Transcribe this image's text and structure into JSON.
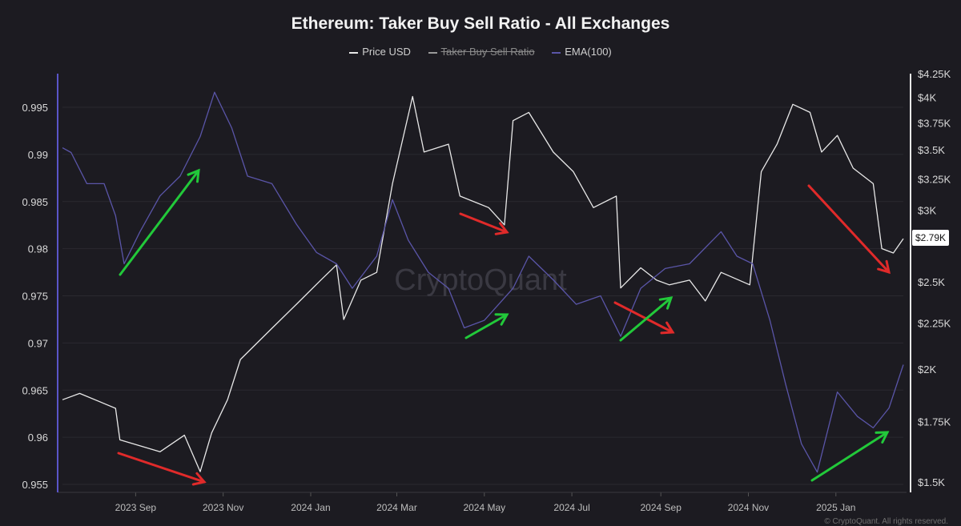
{
  "chart_data": {
    "type": "line",
    "title": "Ethereum: Taker Buy Sell Ratio - All Exchanges",
    "legend": [
      {
        "label": "Price USD",
        "color": "#e8e8e8",
        "hidden": false
      },
      {
        "label": "Taker Buy Sell Ratio",
        "color": "#9a9a9a",
        "hidden": true
      },
      {
        "label": "EMA(100)",
        "color": "#5a55a8",
        "hidden": false
      }
    ],
    "legend_placement": "top-center",
    "x_ticks": [
      {
        "date": "2023-09-01",
        "label": "2023 Sep"
      },
      {
        "date": "2023-11-01",
        "label": "2023 Nov"
      },
      {
        "date": "2024-01-01",
        "label": "2024 Jan"
      },
      {
        "date": "2024-03-01",
        "label": "2024 Mar"
      },
      {
        "date": "2024-05-01",
        "label": "2024 May"
      },
      {
        "date": "2024-07-01",
        "label": "2024 Jul"
      },
      {
        "date": "2024-09-01",
        "label": "2024 Sep"
      },
      {
        "date": "2024-11-01",
        "label": "2024 Nov"
      },
      {
        "date": "2025-01-01",
        "label": "2025 Jan"
      }
    ],
    "x_range": [
      "2023-07-12",
      "2025-02-17"
    ],
    "y_left": {
      "range": [
        0.9535,
        0.9985
      ],
      "ticks": [
        0.955,
        0.96,
        0.965,
        0.97,
        0.975,
        0.98,
        0.985,
        0.99,
        0.995
      ],
      "tick_labels": [
        "0.955",
        "0.96",
        "0.965",
        "0.97",
        "0.975",
        "0.98",
        "0.985",
        "0.99",
        "0.995"
      ]
    },
    "y_right": {
      "scale": "log",
      "range": [
        1.5,
        4.25
      ],
      "unit": "USD thousands",
      "ticks": [
        1.5,
        1.75,
        2,
        2.25,
        2.5,
        3,
        3.25,
        3.5,
        3.75,
        4,
        4.25
      ],
      "tick_labels": [
        "$1.5K",
        "$1.75K",
        "$2K",
        "$2.25K",
        "$2.5K",
        "$3K",
        "$3.25K",
        "$3.5K",
        "$3.75K",
        "$4K",
        "$4.25K"
      ]
    },
    "current_price_label": "$2.79K",
    "grid": true,
    "series": [
      {
        "name": "Price USD",
        "axis": "right",
        "color": "#e8e8e8",
        "x": [
          "2023-07-12",
          "2023-07-24",
          "2023-08-18",
          "2023-08-21",
          "2023-09-18",
          "2023-10-05",
          "2023-10-16",
          "2023-10-24",
          "2023-11-04",
          "2023-11-13",
          "2023-12-05",
          "2023-12-22",
          "2024-01-08",
          "2024-01-19",
          "2024-01-24",
          "2024-02-05",
          "2024-02-16",
          "2024-02-27",
          "2024-03-12",
          "2024-03-20",
          "2024-04-06",
          "2024-04-14",
          "2024-05-04",
          "2024-05-15",
          "2024-05-21",
          "2024-06-01",
          "2024-06-18",
          "2024-07-02",
          "2024-07-16",
          "2024-08-01",
          "2024-08-04",
          "2024-08-18",
          "2024-08-29",
          "2024-09-07",
          "2024-09-21",
          "2024-10-02",
          "2024-10-13",
          "2024-11-02",
          "2024-11-10",
          "2024-11-21",
          "2024-12-02",
          "2024-12-14",
          "2024-12-22",
          "2025-01-02",
          "2025-01-13",
          "2025-01-27",
          "2025-02-02",
          "2025-02-10",
          "2025-02-17"
        ],
        "y": [
          1.85,
          1.88,
          1.81,
          1.67,
          1.62,
          1.69,
          1.54,
          1.7,
          1.85,
          2.05,
          2.22,
          2.36,
          2.51,
          2.61,
          2.27,
          2.51,
          2.56,
          3.21,
          4.01,
          3.48,
          3.55,
          3.11,
          3.02,
          2.89,
          3.77,
          3.85,
          3.48,
          3.31,
          3.02,
          3.11,
          2.46,
          2.59,
          2.51,
          2.48,
          2.51,
          2.38,
          2.56,
          2.48,
          3.31,
          3.55,
          3.93,
          3.85,
          3.48,
          3.63,
          3.34,
          3.21,
          2.72,
          2.69,
          2.79
        ]
      },
      {
        "name": "EMA(100)",
        "axis": "left",
        "color": "#5a55a8",
        "x": [
          "2023-07-12",
          "2023-07-18",
          "2023-07-29",
          "2023-08-10",
          "2023-08-18",
          "2023-08-24",
          "2023-09-04",
          "2023-09-18",
          "2023-10-02",
          "2023-10-16",
          "2023-10-26",
          "2023-11-07",
          "2023-11-18",
          "2023-12-05",
          "2023-12-22",
          "2024-01-05",
          "2024-01-19",
          "2024-01-30",
          "2024-02-16",
          "2024-02-27",
          "2024-03-09",
          "2024-03-23",
          "2024-04-06",
          "2024-04-17",
          "2024-05-01",
          "2024-05-21",
          "2024-06-01",
          "2024-06-18",
          "2024-07-04",
          "2024-07-21",
          "2024-08-04",
          "2024-08-18",
          "2024-09-04",
          "2024-09-21",
          "2024-10-13",
          "2024-10-24",
          "2024-11-04",
          "2024-11-16",
          "2024-11-27",
          "2024-12-08",
          "2024-12-19",
          "2025-01-02",
          "2025-01-16",
          "2025-01-27",
          "2025-02-07",
          "2025-02-17"
        ],
        "y": [
          0.9907,
          0.9902,
          0.9869,
          0.9869,
          0.9835,
          0.9784,
          0.9818,
          0.9856,
          0.9877,
          0.9919,
          0.9966,
          0.9928,
          0.9877,
          0.9869,
          0.9826,
          0.9796,
          0.9784,
          0.9758,
          0.9792,
          0.9852,
          0.9809,
          0.9775,
          0.9758,
          0.9716,
          0.9724,
          0.9758,
          0.9792,
          0.9767,
          0.9741,
          0.975,
          0.9707,
          0.9758,
          0.9779,
          0.9784,
          0.9818,
          0.9792,
          0.9784,
          0.9724,
          0.9656,
          0.9593,
          0.9563,
          0.9648,
          0.9622,
          0.961,
          0.9631,
          0.9677
        ]
      }
    ],
    "annotation_colors": {
      "up": "#22c93a",
      "down": "#e02a2a"
    },
    "watermark": "CryptoQuant",
    "copyright": "© CryptoQuant. All rights reserved."
  }
}
